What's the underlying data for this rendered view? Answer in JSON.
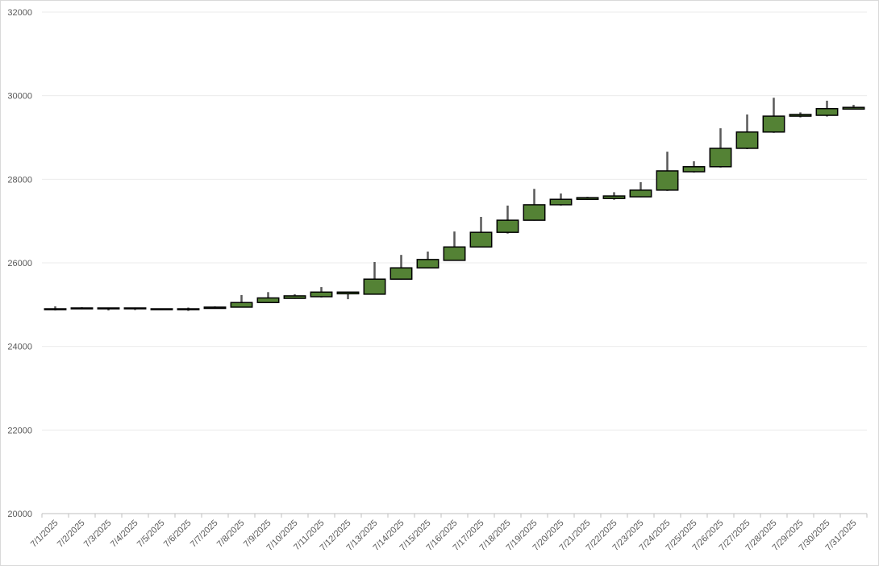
{
  "chart_data": {
    "type": "candlestick",
    "categories": [
      "7/1/2025",
      "7/2/2025",
      "7/3/2025",
      "7/4/2025",
      "7/5/2025",
      "7/6/2025",
      "7/7/2025",
      "7/8/2025",
      "7/9/2025",
      "7/10/2025",
      "7/11/2025",
      "7/12/2025",
      "7/13/2025",
      "7/14/2025",
      "7/15/2025",
      "7/16/2025",
      "7/17/2025",
      "7/18/2025",
      "7/19/2025",
      "7/20/2025",
      "7/21/2025",
      "7/22/2025",
      "7/23/2025",
      "7/24/2025",
      "7/25/2025",
      "7/26/2025",
      "7/27/2025",
      "7/28/2025",
      "7/29/2025",
      "7/30/2025",
      "7/31/2025"
    ],
    "open": [
      24880,
      24900,
      24900,
      24910,
      24880,
      24880,
      24910,
      24940,
      25050,
      25150,
      25190,
      25260,
      25250,
      25610,
      25880,
      26060,
      26380,
      26730,
      27020,
      27390,
      27520,
      27540,
      27580,
      27740,
      28180,
      28300,
      28740,
      29130,
      29510,
      29530,
      29680
    ],
    "high": [
      24960,
      24940,
      24930,
      24930,
      24910,
      24930,
      24960,
      25230,
      25300,
      25250,
      25420,
      25310,
      26020,
      26190,
      26270,
      26750,
      27100,
      27370,
      27770,
      27660,
      27580,
      27690,
      27930,
      28660,
      28430,
      29220,
      29550,
      29950,
      29600,
      29880,
      29780
    ],
    "low": [
      24860,
      24890,
      24860,
      24870,
      24870,
      24850,
      24900,
      24930,
      25040,
      25140,
      25170,
      25130,
      25240,
      25600,
      25870,
      26050,
      26370,
      26700,
      27010,
      27370,
      27510,
      27510,
      27570,
      27720,
      28160,
      28280,
      28720,
      29110,
      29480,
      29500,
      29670
    ],
    "close": [
      24900,
      24920,
      24920,
      24920,
      24900,
      24900,
      24940,
      25050,
      25160,
      25210,
      25300,
      25300,
      25610,
      25880,
      26080,
      26380,
      26730,
      27020,
      27390,
      27520,
      27560,
      27600,
      27740,
      28200,
      28300,
      28740,
      29130,
      29510,
      29550,
      29690,
      29720
    ],
    "up_color": "#548235",
    "wick_color": "#595959",
    "ylim": [
      20000,
      32000
    ],
    "yticks": [
      20000,
      22000,
      24000,
      26000,
      28000,
      30000,
      32000
    ],
    "grid": true
  }
}
